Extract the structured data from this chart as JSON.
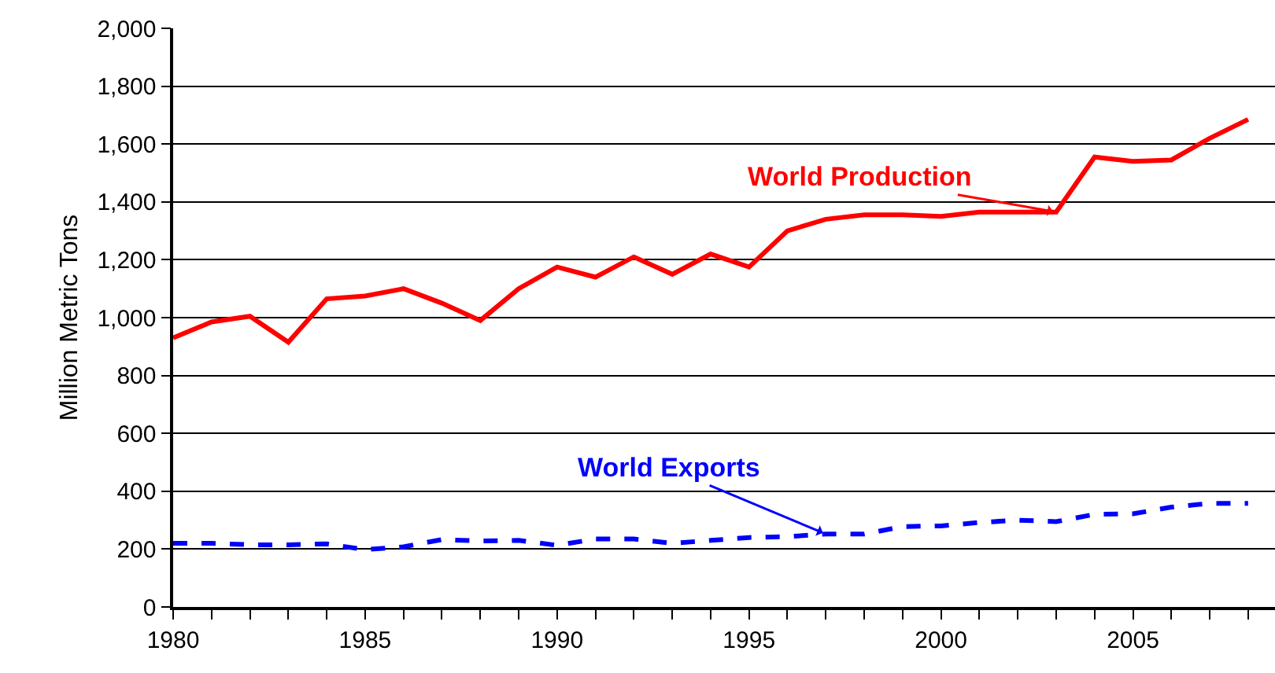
{
  "chart_data": {
    "type": "line",
    "ylabel": "Million Metric Tons",
    "x": [
      1980,
      1981,
      1982,
      1983,
      1984,
      1985,
      1986,
      1987,
      1988,
      1989,
      1990,
      1991,
      1992,
      1993,
      1994,
      1995,
      1996,
      1997,
      1998,
      1999,
      2000,
      2001,
      2002,
      2003,
      2004,
      2005,
      2006,
      2007,
      2008
    ],
    "series": [
      {
        "name": "World Production",
        "color": "#ff0000",
        "line_style": "solid",
        "values": [
          930,
          985,
          1005,
          915,
          1065,
          1075,
          1100,
          1050,
          990,
          1100,
          1175,
          1140,
          1210,
          1150,
          1220,
          1175,
          1300,
          1340,
          1355,
          1355,
          1350,
          1365,
          1365,
          1365,
          1555,
          1540,
          1545,
          1620,
          1685
        ]
      },
      {
        "name": "World Exports",
        "color": "#0000ff",
        "line_style": "dashed",
        "values": [
          220,
          220,
          215,
          215,
          218,
          198,
          208,
          233,
          228,
          230,
          213,
          235,
          235,
          220,
          230,
          240,
          243,
          252,
          252,
          278,
          280,
          292,
          300,
          295,
          320,
          322,
          345,
          358,
          358
        ]
      }
    ],
    "xlim": [
      1980,
      2008.7
    ],
    "ylim": [
      0,
      2000
    ],
    "xticks": [
      1980,
      {
        "value": 1981,
        "label": null
      },
      {
        "value": 1982,
        "label": null
      },
      {
        "value": 1983,
        "label": null
      },
      {
        "value": 1984,
        "label": null
      },
      1985,
      {
        "value": 1986,
        "label": null
      },
      {
        "value": 1987,
        "label": null
      },
      {
        "value": 1988,
        "label": null
      },
      {
        "value": 1989,
        "label": null
      },
      1990,
      {
        "value": 1991,
        "label": null
      },
      {
        "value": 1992,
        "label": null
      },
      {
        "value": 1993,
        "label": null
      },
      {
        "value": 1994,
        "label": null
      },
      1995,
      {
        "value": 1996,
        "label": null
      },
      {
        "value": 1997,
        "label": null
      },
      {
        "value": 1998,
        "label": null
      },
      {
        "value": 1999,
        "label": null
      },
      2000,
      {
        "value": 2001,
        "label": null
      },
      {
        "value": 2002,
        "label": null
      },
      {
        "value": 2003,
        "label": null
      },
      {
        "value": 2004,
        "label": null
      },
      2005,
      {
        "value": 2006,
        "label": null
      },
      {
        "value": 2007,
        "label": null
      },
      {
        "value": 2008,
        "label": null
      }
    ],
    "yticks": [
      0,
      200,
      400,
      600,
      800,
      {
        "value": 1000,
        "label": "1,000"
      },
      {
        "value": 1200,
        "label": "1,200"
      },
      {
        "value": 1400,
        "label": "1,400"
      },
      {
        "value": 1600,
        "label": "1,600"
      },
      {
        "value": 1800,
        "label": "1,800"
      },
      {
        "value": 2000,
        "label": "2,000"
      }
    ],
    "grid": "y",
    "legend": false,
    "marker": "none"
  }
}
